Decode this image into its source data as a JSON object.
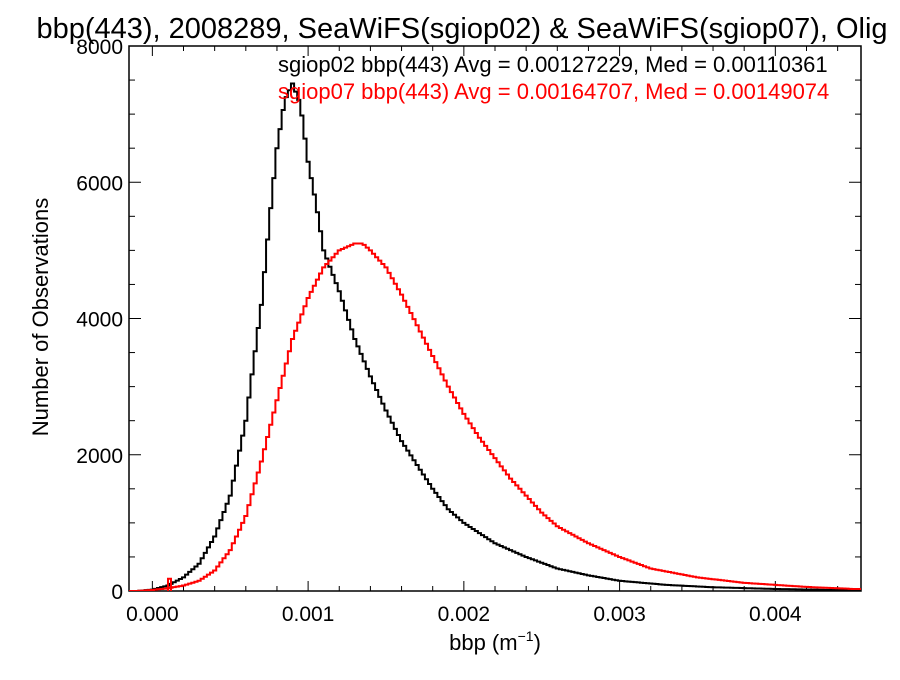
{
  "chart_data": {
    "type": "line",
    "title": "bbp(443), 2008289, SeaWiFS(sgiop02) & SeaWiFS(sgiop07), Olig",
    "xlabel": "bbp (m",
    "xlabel_sup": "−1",
    "xlabel_close": ")",
    "ylabel": "Number of Observations",
    "xlim": [
      -0.00015,
      0.00455
    ],
    "ylim": [
      0,
      8000
    ],
    "x_ticks": [
      0.0,
      0.001,
      0.002,
      0.003,
      0.004
    ],
    "x_tick_labels": [
      "0.000",
      "0.001",
      "0.002",
      "0.003",
      "0.004"
    ],
    "y_ticks": [
      0,
      2000,
      4000,
      6000,
      8000
    ],
    "y_tick_labels": [
      "0",
      "2000",
      "4000",
      "6000",
      "8000"
    ],
    "grid": false,
    "style": "step histogram",
    "annotations": [
      {
        "text": "sgiop02 bbp(443) Avg = 0.00127229, Med = 0.00110361",
        "color": "#000000"
      },
      {
        "text": "sgiop07 bbp(443) Avg = 0.00164707, Med = 0.00149074",
        "color": "#ff0000"
      }
    ],
    "series": [
      {
        "color": "#000000",
        "x": [
          -0.0001,
          0.0,
          0.0001,
          0.0002,
          0.0003,
          0.0004,
          0.0005,
          0.0006,
          0.0007,
          0.00075,
          0.0008,
          0.00085,
          0.0009,
          0.00095,
          0.001,
          0.00105,
          0.0011,
          0.0012,
          0.0013,
          0.0014,
          0.0015,
          0.0016,
          0.0017,
          0.0018,
          0.0019,
          0.002,
          0.0022,
          0.0024,
          0.0026,
          0.0028,
          0.003,
          0.0033,
          0.0036,
          0.004,
          0.0045
        ],
        "y": [
          0,
          20,
          80,
          200,
          400,
          800,
          1400,
          2500,
          4200,
          5400,
          6500,
          7200,
          7450,
          7150,
          6300,
          5700,
          5000,
          4400,
          3700,
          3150,
          2650,
          2200,
          1850,
          1500,
          1200,
          1000,
          700,
          500,
          330,
          230,
          150,
          90,
          55,
          30,
          10
        ]
      },
      {
        "color": "#ff0000",
        "x": [
          -0.0001,
          0.0,
          0.0001,
          0.0002,
          0.0003,
          0.0004,
          0.0005,
          0.0006,
          0.0007,
          0.0008,
          0.0009,
          0.001,
          0.0011,
          0.0012,
          0.0013,
          0.00135,
          0.0014,
          0.0015,
          0.0016,
          0.0017,
          0.0018,
          0.0019,
          0.002,
          0.0021,
          0.0022,
          0.0023,
          0.0024,
          0.0025,
          0.0026,
          0.0028,
          0.003,
          0.0032,
          0.0035,
          0.0038,
          0.0042,
          0.0045
        ],
        "y": [
          0,
          15,
          40,
          80,
          150,
          300,
          600,
          1100,
          1900,
          2800,
          3700,
          4300,
          4750,
          5000,
          5100,
          5100,
          5000,
          4750,
          4350,
          3900,
          3450,
          3000,
          2600,
          2250,
          1950,
          1650,
          1400,
          1150,
          950,
          700,
          500,
          330,
          200,
          120,
          60,
          30
        ]
      }
    ],
    "spike": {
      "x": 0.00011,
      "y": 180,
      "color": "#ff0000"
    }
  }
}
